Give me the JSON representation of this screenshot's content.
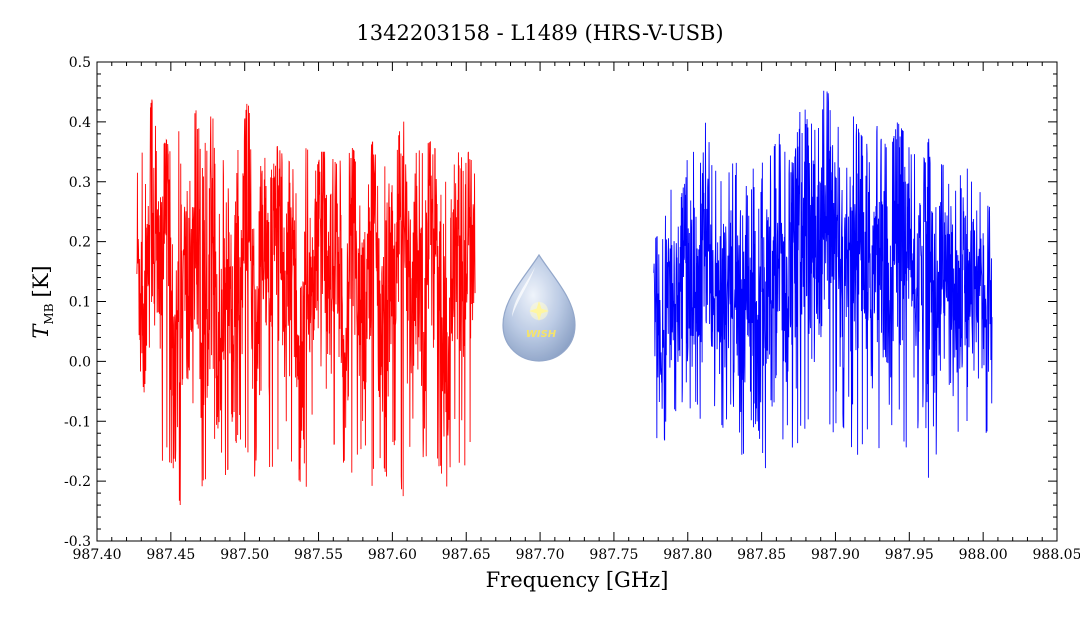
{
  "chart_data": {
    "type": "line",
    "title": "1342203158 - L1489 (HRS-V-USB)",
    "xlabel": "Frequency [GHz]",
    "ylabel": {
      "symbol": "T",
      "subscript": "MB",
      "unit": "[K]"
    },
    "xlim": [
      987.4,
      988.05
    ],
    "ylim": [
      -0.3,
      0.5
    ],
    "xticks": [
      987.4,
      987.45,
      987.5,
      987.55,
      987.6,
      987.65,
      987.7,
      987.75,
      987.8,
      987.85,
      987.9,
      987.95,
      988.0,
      988.05
    ],
    "xtick_labels": [
      "987.40",
      "987.45",
      "987.50",
      "987.55",
      "987.60",
      "987.65",
      "987.70",
      "987.75",
      "987.80",
      "987.85",
      "987.90",
      "987.95",
      "988.00",
      "988.05"
    ],
    "yticks": [
      -0.3,
      -0.2,
      -0.1,
      0.0,
      0.1,
      0.2,
      0.3,
      0.4,
      0.5
    ],
    "ytick_labels": [
      "-0.3",
      "-0.2",
      "-0.1",
      "0.0",
      "0.1",
      "0.2",
      "0.3",
      "0.4",
      "0.5"
    ],
    "grid": false,
    "series": [
      {
        "color": "#ff0000",
        "x": [
          987.427,
          987.432,
          987.437,
          987.442,
          987.447,
          987.452,
          987.457,
          987.462,
          987.467,
          987.472,
          987.477,
          987.482,
          987.487,
          987.492,
          987.497,
          987.502,
          987.507,
          987.512,
          987.517,
          987.522,
          987.527,
          987.532,
          987.537,
          987.542,
          987.547,
          987.552,
          987.557,
          987.562,
          987.567,
          987.572,
          987.577,
          987.582,
          987.587,
          987.592,
          987.597,
          987.602,
          987.607,
          987.612,
          987.617,
          987.622,
          987.627,
          987.632,
          987.637,
          987.642,
          987.647,
          987.652,
          987.656
        ],
        "y": [
          0.21,
          0.05,
          0.37,
          0.12,
          0.44,
          -0.05,
          0.16,
          0.09,
          0.31,
          -0.15,
          0.42,
          -0.04,
          0.23,
          0.11,
          0.08,
          0.44,
          -0.09,
          0.27,
          0.14,
          0.38,
          0.03,
          0.29,
          -0.07,
          0.19,
          0.12,
          0.35,
          0.06,
          0.24,
          -0.11,
          0.33,
          0.17,
          0.09,
          0.36,
          -0.02,
          0.21,
          0.13,
          0.41,
          0.01,
          0.27,
          0.08,
          0.37,
          0.15,
          -0.12,
          0.28,
          0.11,
          0.31,
          0.04
        ],
        "upper_envelope": [
          0.37,
          0.34,
          0.44,
          0.35,
          0.37,
          0.33,
          0.41,
          0.38,
          0.42,
          0.34,
          0.44,
          0.35,
          0.33,
          0.36,
          0.35,
          0.44,
          0.33,
          0.35,
          0.32,
          0.36,
          0.34,
          0.33,
          0.32,
          0.36,
          0.31,
          0.35,
          0.35,
          0.33,
          0.34,
          0.36,
          0.34,
          0.33,
          0.37,
          0.33,
          0.34,
          0.35,
          0.41,
          0.34,
          0.35,
          0.36,
          0.37,
          0.33,
          0.32,
          0.36,
          0.34,
          0.35,
          0.31
        ],
        "lower_envelope": [
          -0.13,
          -0.05,
          -0.11,
          -0.23,
          -0.16,
          -0.18,
          -0.25,
          -0.17,
          -0.15,
          -0.22,
          -0.14,
          -0.12,
          -0.19,
          -0.16,
          -0.13,
          -0.15,
          -0.2,
          -0.14,
          -0.19,
          -0.15,
          -0.12,
          -0.17,
          -0.2,
          -0.21,
          -0.14,
          -0.18,
          -0.16,
          -0.13,
          -0.17,
          -0.19,
          -0.15,
          -0.14,
          -0.22,
          -0.16,
          -0.2,
          -0.13,
          -0.23,
          -0.15,
          -0.17,
          -0.22,
          -0.2,
          -0.18,
          -0.21,
          -0.13,
          -0.19,
          -0.15,
          -0.05
        ]
      },
      {
        "color": "#0000ff",
        "x": [
          987.777,
          987.782,
          987.787,
          987.792,
          987.797,
          987.802,
          987.807,
          987.812,
          987.817,
          987.822,
          987.827,
          987.832,
          987.837,
          987.842,
          987.847,
          987.852,
          987.857,
          987.862,
          987.867,
          987.872,
          987.877,
          987.882,
          987.887,
          987.892,
          987.897,
          987.902,
          987.907,
          987.912,
          987.917,
          987.922,
          987.927,
          987.932,
          987.937,
          987.942,
          987.947,
          987.952,
          987.957,
          987.962,
          987.967,
          987.972,
          987.977,
          987.982,
          987.987,
          987.992,
          987.997,
          988.002,
          988.006
        ],
        "y": [
          0.13,
          0.04,
          0.18,
          0.09,
          0.22,
          0.11,
          0.07,
          0.25,
          0.14,
          0.03,
          0.19,
          0.12,
          0.08,
          0.17,
          0.05,
          0.23,
          0.13,
          0.31,
          0.1,
          0.27,
          0.18,
          0.36,
          0.15,
          0.29,
          0.21,
          0.09,
          0.24,
          0.16,
          0.32,
          0.12,
          0.2,
          0.27,
          0.07,
          0.23,
          0.31,
          0.14,
          0.19,
          0.26,
          0.11,
          0.21,
          0.15,
          0.05,
          0.18,
          0.09,
          0.13,
          0.17,
          0.16
        ],
        "upper_envelope": [
          0.2,
          0.22,
          0.27,
          0.32,
          0.29,
          0.38,
          0.3,
          0.4,
          0.33,
          0.3,
          0.31,
          0.34,
          0.29,
          0.32,
          0.36,
          0.32,
          0.35,
          0.38,
          0.34,
          0.33,
          0.45,
          0.39,
          0.41,
          0.46,
          0.44,
          0.39,
          0.36,
          0.41,
          0.38,
          0.36,
          0.4,
          0.37,
          0.35,
          0.4,
          0.38,
          0.34,
          0.36,
          0.39,
          0.31,
          0.33,
          0.32,
          0.28,
          0.34,
          0.3,
          0.31,
          0.29,
          0.28
        ],
        "lower_envelope": [
          -0.12,
          -0.14,
          -0.13,
          -0.11,
          -0.06,
          -0.08,
          -0.12,
          -0.14,
          -0.09,
          -0.1,
          -0.13,
          -0.11,
          -0.16,
          -0.12,
          -0.1,
          -0.19,
          -0.09,
          -0.14,
          -0.12,
          -0.17,
          -0.1,
          -0.18,
          -0.14,
          -0.11,
          -0.13,
          -0.09,
          -0.12,
          -0.15,
          -0.16,
          -0.11,
          -0.13,
          -0.16,
          -0.15,
          -0.12,
          -0.14,
          -0.16,
          -0.13,
          -0.2,
          -0.17,
          -0.11,
          -0.14,
          -0.13,
          -0.15,
          -0.12,
          -0.13,
          -0.16,
          -0.1
        ]
      }
    ],
    "logo": {
      "text": "WISH",
      "fill_color": "#9fb4d4",
      "star_color": "#fff6a0",
      "text_color": "#f5e36b"
    }
  }
}
